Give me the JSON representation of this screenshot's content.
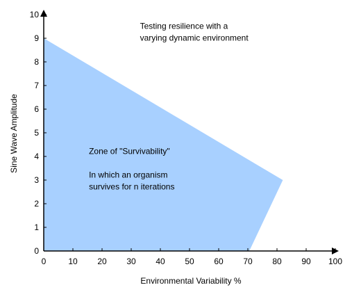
{
  "chart_data": {
    "type": "area",
    "xlabel": "Environmental Variability %",
    "ylabel": "Sine Wave Amplitude",
    "xlim": [
      0,
      100
    ],
    "ylim": [
      0,
      10
    ],
    "x_ticks": [
      0,
      10,
      20,
      30,
      40,
      50,
      60,
      70,
      80,
      90,
      100
    ],
    "y_ticks": [
      0,
      1,
      2,
      3,
      4,
      5,
      6,
      7,
      8,
      9,
      10
    ],
    "grid": false,
    "fill_color": "#a8d0ff",
    "region": {
      "points": [
        {
          "x": 0,
          "y": 0
        },
        {
          "x": 0,
          "y": 9
        },
        {
          "x": 82,
          "y": 3
        },
        {
          "x": 70.5,
          "y": 0
        }
      ]
    },
    "annotations": [
      {
        "lines": [
          "Testing resilience with a",
          "varying dynamic environment"
        ],
        "x": 33,
        "y": 9.4
      },
      {
        "lines": [
          "Zone of  \"Survivability\""
        ],
        "x": 15.5,
        "y": 4.1
      },
      {
        "lines": [
          "In which an organism",
          "survives for n iterations"
        ],
        "x": 15.5,
        "y": 3.1
      }
    ]
  }
}
